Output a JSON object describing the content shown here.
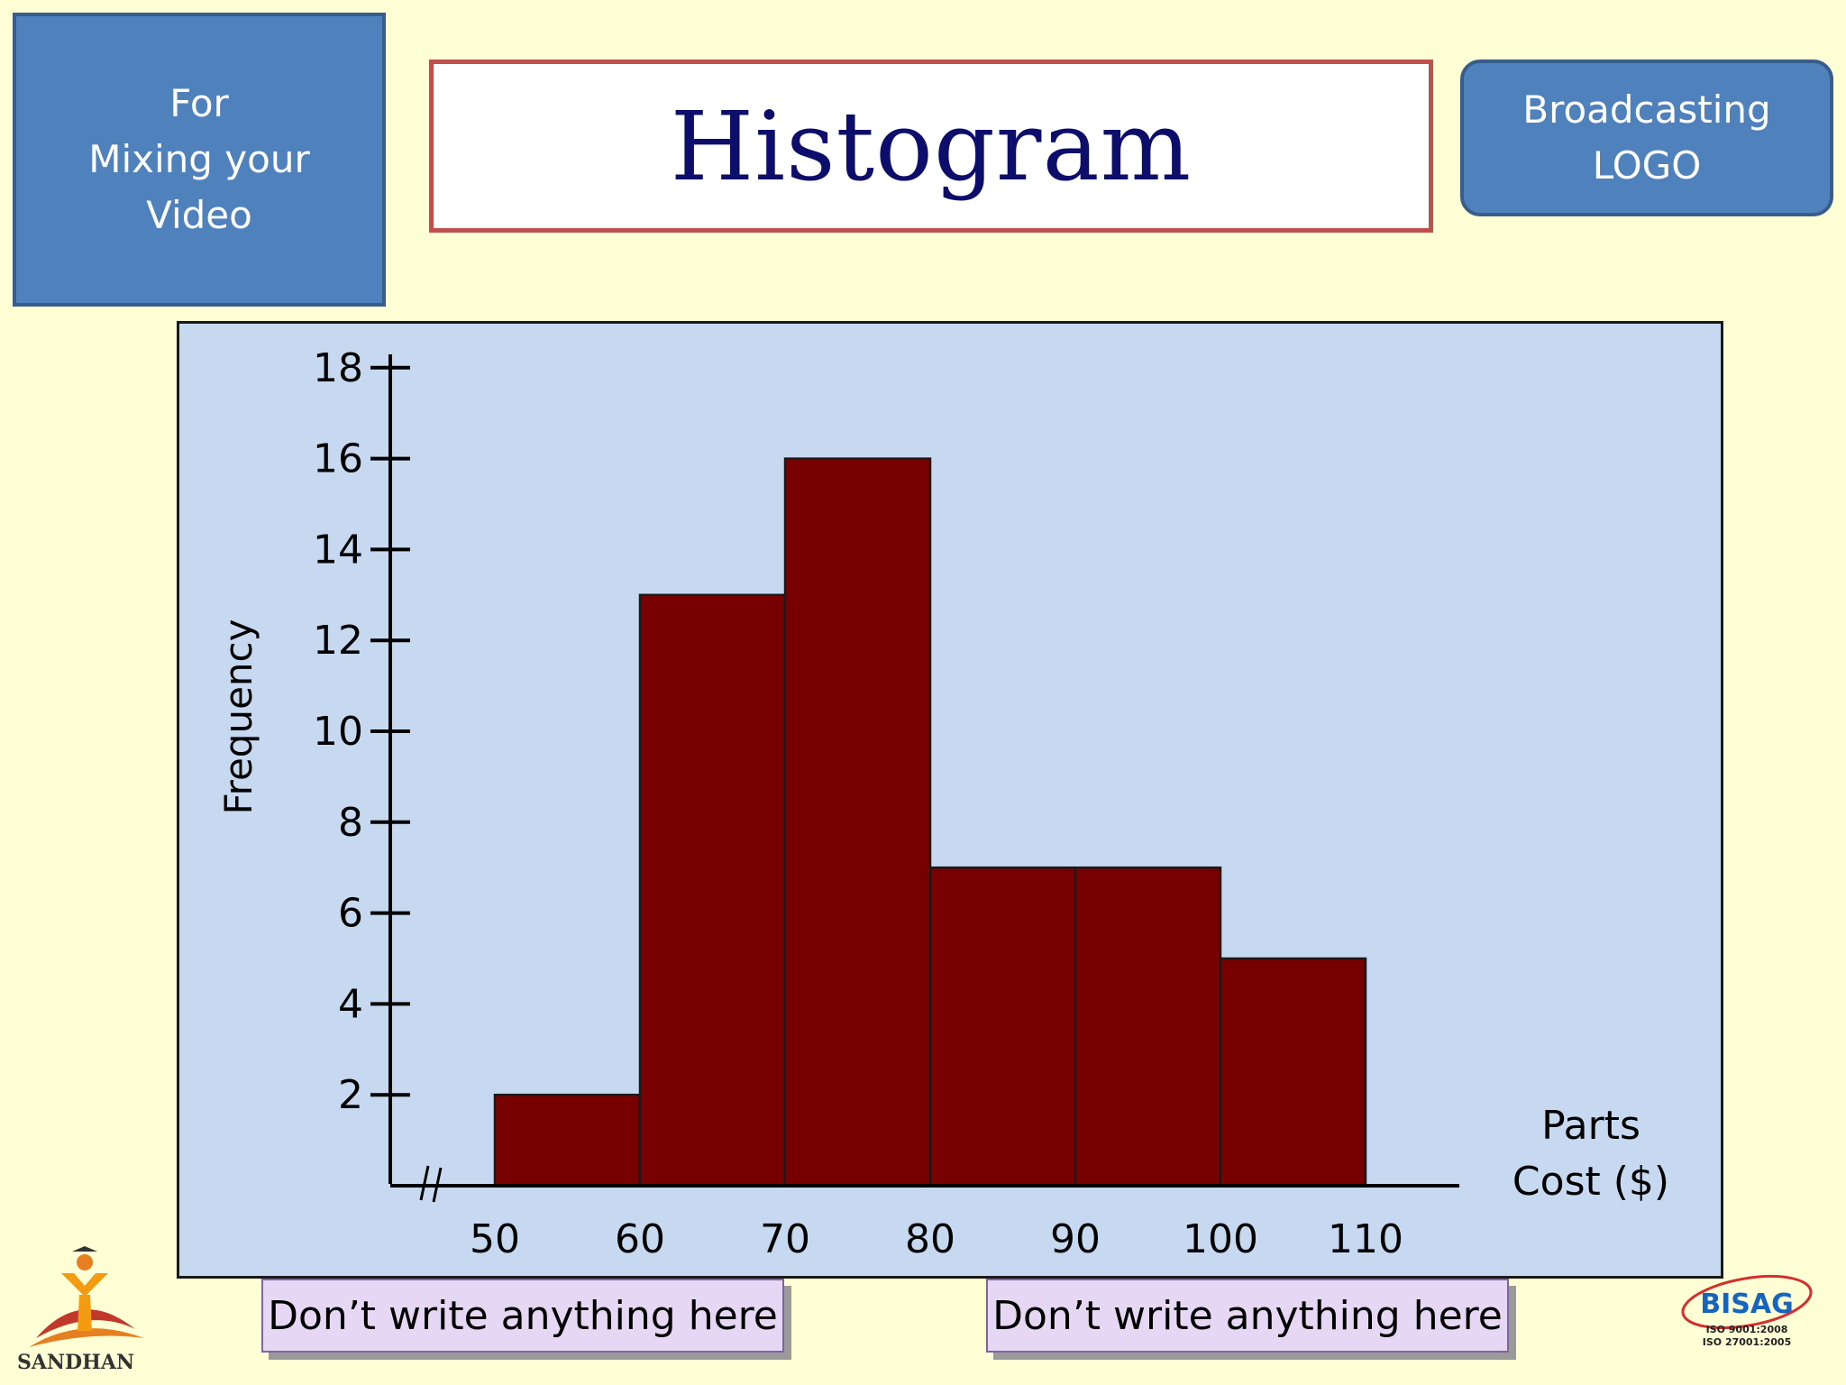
{
  "left_box": {
    "lines": [
      "For",
      "Mixing your",
      "Video"
    ]
  },
  "title": "Histogram",
  "right_box": {
    "lines": [
      "Broadcasting",
      "LOGO"
    ]
  },
  "chart_data": {
    "type": "bar",
    "title": "Histogram",
    "ylabel": "Frequency",
    "xlabel": "Parts Cost ($)",
    "xlabel_lines": [
      "Parts",
      "Cost ($)"
    ],
    "x_ticks": [
      50,
      60,
      70,
      80,
      90,
      100,
      110
    ],
    "bins": [
      {
        "from": 50,
        "to": 60,
        "value": 2
      },
      {
        "from": 60,
        "to": 70,
        "value": 13
      },
      {
        "from": 70,
        "to": 80,
        "value": 16
      },
      {
        "from": 80,
        "to": 90,
        "value": 7
      },
      {
        "from": 90,
        "to": 100,
        "value": 7
      },
      {
        "from": 100,
        "to": 110,
        "value": 5
      }
    ],
    "y_ticks": [
      2,
      4,
      6,
      8,
      10,
      12,
      14,
      16,
      18
    ],
    "ylim": [
      0,
      18
    ],
    "xlim": [
      50,
      110
    ],
    "axis_break": true,
    "grid": false,
    "bar_color": "#770000",
    "background_color": "#c6d9f1"
  },
  "notes": [
    "Don’t write anything here",
    "Don’t write anything here"
  ],
  "logos": {
    "left_text": "SANDHAN",
    "right_text": "BISAG",
    "right_sub": [
      "ISO  9001:2008",
      "ISO 27001:2005"
    ]
  }
}
